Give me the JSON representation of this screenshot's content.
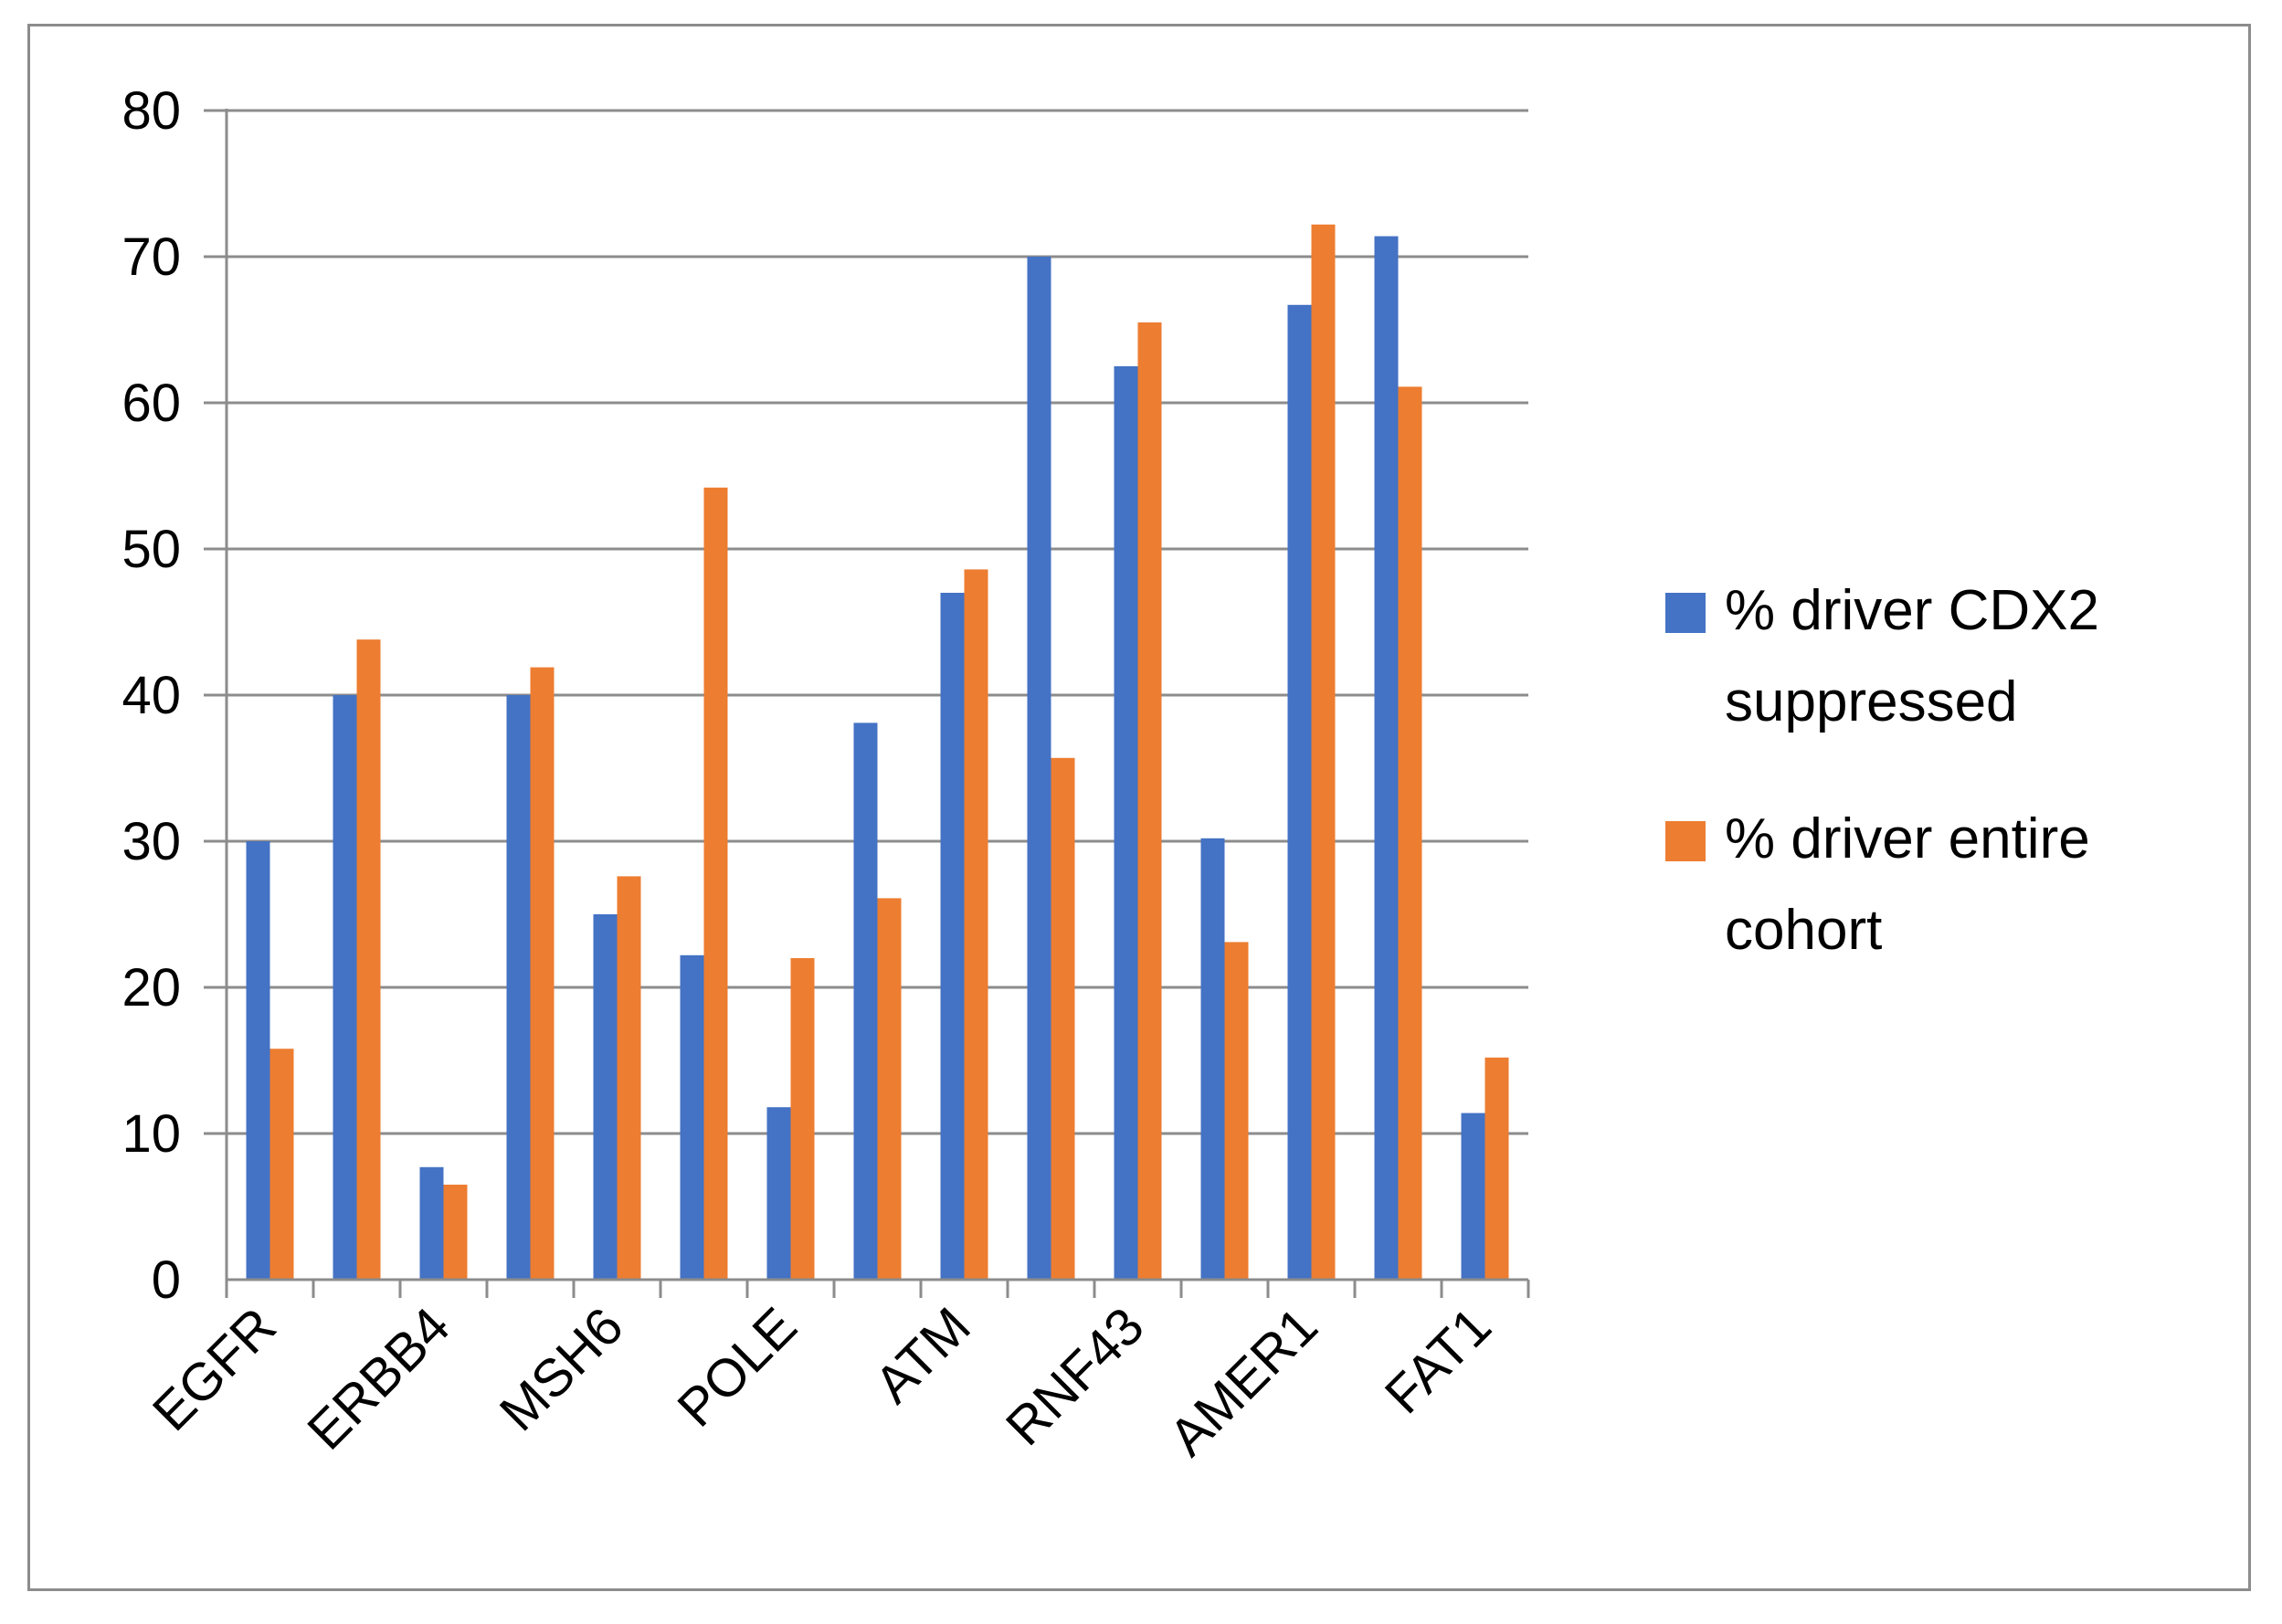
{
  "chart_data": {
    "type": "bar",
    "title": "",
    "xlabel": "",
    "ylabel": "",
    "ylim": [
      0,
      80
    ],
    "yticks": [
      0,
      10,
      20,
      30,
      40,
      50,
      60,
      70,
      80
    ],
    "grid": true,
    "legend_position": "right",
    "categories": [
      "EGFR",
      "",
      "ERBB4",
      "",
      "MSH6",
      "",
      "POLE",
      "",
      "ATM",
      "",
      "RNF43",
      "",
      "AMER1",
      "",
      "FAT1"
    ],
    "series": [
      {
        "name": "% driver CDX2 suppressed",
        "color": "#4472C4",
        "values": [
          30,
          40,
          7.7,
          40,
          25,
          22.2,
          11.8,
          38.1,
          47,
          70,
          62.5,
          30.2,
          66.7,
          71.4,
          11.4
        ]
      },
      {
        "name": "% driver entire cohort",
        "color": "#ED7D31",
        "values": [
          15.8,
          43.8,
          6.5,
          41.9,
          27.6,
          54.2,
          22,
          26.1,
          48.6,
          35.7,
          65.5,
          23.1,
          72.2,
          61.1,
          15.2
        ]
      }
    ]
  },
  "style": {
    "grid_color": "#8c8c8c",
    "axis_color": "#8c8c8c"
  }
}
